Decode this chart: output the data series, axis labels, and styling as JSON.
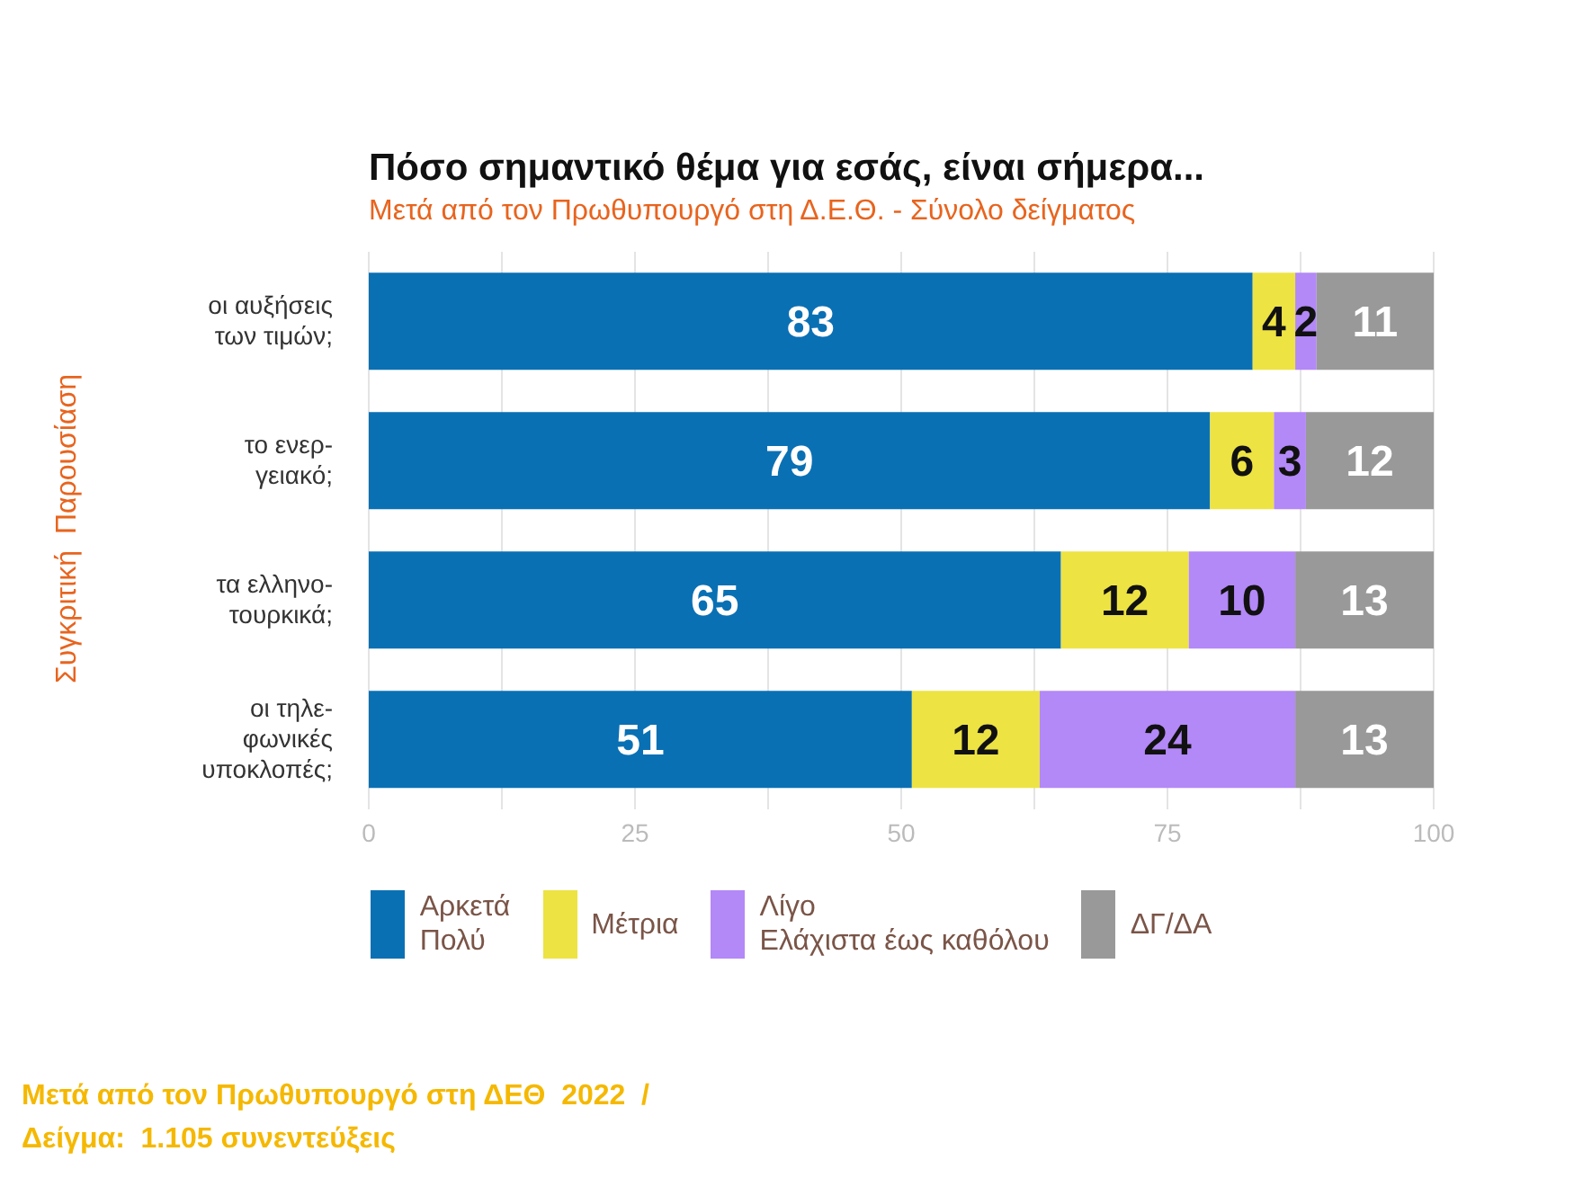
{
  "chart_data": {
    "type": "bar",
    "orientation": "horizontal",
    "stacked": true,
    "title": "Πόσο σημαντικό θέμα για εσάς, είναι σήμερα...",
    "subtitle": "Μετά από τον Πρωθυπουργό στη Δ.Ε.Θ.  -  Σύνολο δείγματος",
    "categories": [
      "οι αυξήσεις\nτων τιμών;",
      "το ενερ-\nγειακό;",
      "τα ελληνο-\nτουρκικά;",
      "οι τηλε-\nφωνικές\nυποκλοπές;"
    ],
    "series": [
      {
        "name": "Αρκετά\nΠολύ",
        "color": "#0a70b4",
        "values": [
          83,
          79,
          65,
          51
        ]
      },
      {
        "name": "Μέτρια",
        "color": "#ede343",
        "values": [
          4,
          6,
          12,
          12
        ]
      },
      {
        "name": "Λίγο\nΕλάχιστα έως καθόλου",
        "color": "#b388f7",
        "values": [
          2,
          3,
          10,
          24
        ]
      },
      {
        "name": "ΔΓ/ΔΑ",
        "color": "#999999",
        "values": [
          11,
          12,
          13,
          13
        ]
      }
    ],
    "xlim": [
      0,
      100
    ],
    "xticks": [
      0,
      {
        "value": 12.5,
        "label": null
      },
      25,
      {
        "value": 37.5,
        "label": null
      },
      50,
      {
        "value": 62.5,
        "label": null
      },
      75,
      {
        "value": 87.5,
        "label": null
      },
      100
    ],
    "grid": "x",
    "legend": "bottom",
    "data_labels": true,
    "annotations": [
      "Συγκριτική  Παρουσίαση",
      "Μετά από τον Πρωθυπουργό στη ΔΕΘ  2022  /",
      "Δείγμα:  1.105 συνεντεύξεις"
    ]
  }
}
